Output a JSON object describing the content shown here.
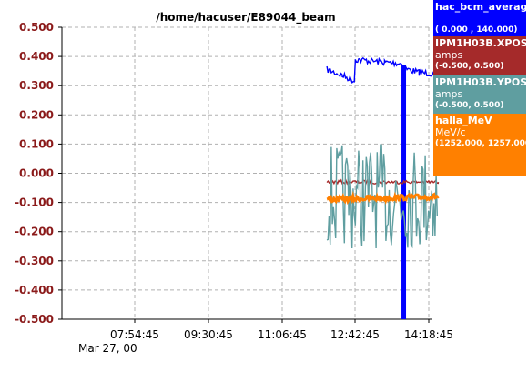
{
  "chart_data": {
    "type": "line",
    "title": "/home/hacuser/E89044_beam",
    "y_tick_labels": [
      "0.500",
      "0.400",
      "0.300",
      "0.200",
      "0.100",
      "0.000",
      "-0.100",
      "-0.200",
      "-0.300",
      "-0.400",
      "-0.500"
    ],
    "ylim": [
      -0.5,
      0.5
    ],
    "x_tick_labels": [
      "07:54:45",
      "09:30:45",
      "11:06:45",
      "12:42:45",
      "14:18:45"
    ],
    "x_date_label": "Mar 27, 00",
    "grid": true,
    "legend_placement": "right",
    "series": [
      {
        "name": "hac_bcm_averag",
        "unit": "",
        "range": "( 0.000 ,  140.000)",
        "color": "#0000ff",
        "segments": [
          {
            "x": [
              "12:05",
              "12:25",
              "12:42",
              "12:42",
              "13:00",
              "13:20",
              "13:45",
              "13:45",
              "14:05",
              "14:30"
            ],
            "y": [
              0.355,
              0.335,
              0.315,
              0.39,
              0.385,
              0.38,
              0.375,
              0.36,
              0.345,
              0.34
            ]
          }
        ],
        "spike": {
          "x": "13:45",
          "y": [
            -0.5,
            0.37
          ]
        }
      },
      {
        "name": "IPM1H03B.XPOS",
        "unit": "amps",
        "range": "(-0.500,  0.500)",
        "color": "#a52a2a",
        "segments": [
          {
            "x": [
              "12:05",
              "14:30"
            ],
            "y": [
              -0.03,
              -0.03
            ]
          }
        ]
      },
      {
        "name": "IPM1H03B.YPOS",
        "unit": "amps",
        "range": "(-0.500,  0.500)",
        "color": "#5f9ea0",
        "segments": [
          {
            "x": [
              "12:05",
              "14:30"
            ],
            "y": [
              -0.13,
              0.09
            ]
          }
        ]
      },
      {
        "name": "halla_MeV",
        "unit": "MeV/c",
        "range": "(1252.000, 1257.000)",
        "color": "#ff8000",
        "segments": [
          {
            "x": [
              "12:05",
              "14:30"
            ],
            "y": [
              -0.09,
              -0.08
            ]
          }
        ]
      }
    ]
  }
}
